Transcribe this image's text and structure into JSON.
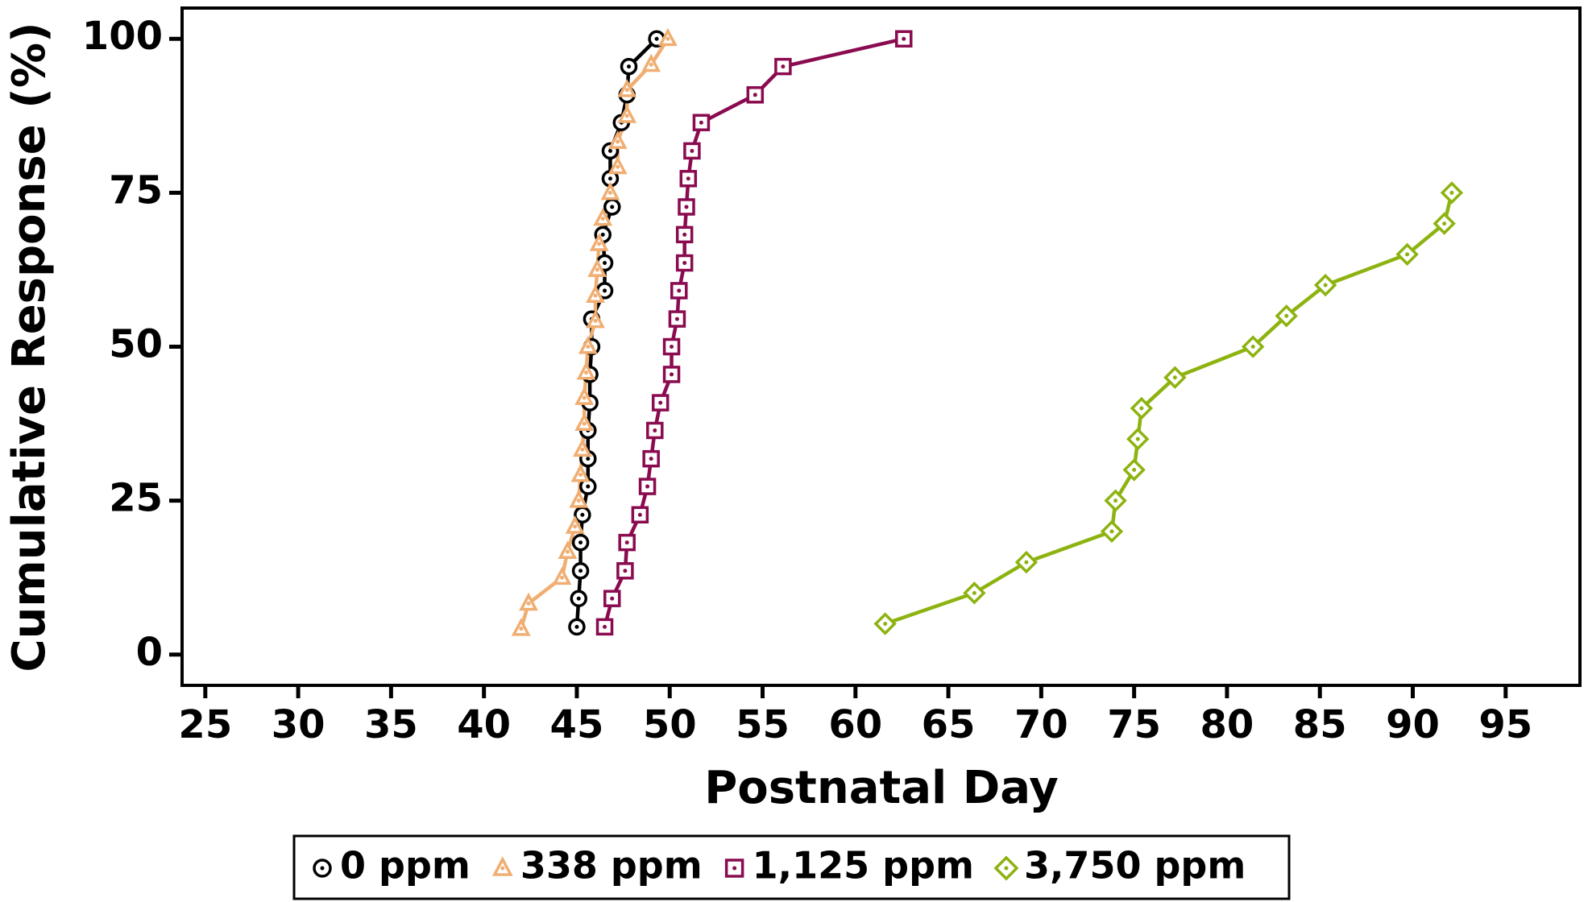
{
  "chart_data": {
    "type": "line",
    "x_label": "Postnatal Day",
    "y_label": "Cumulative Response (%)",
    "xlim": [
      23.75,
      99
    ],
    "ylim": [
      -5,
      105
    ],
    "xticks": [
      25,
      30,
      35,
      40,
      45,
      50,
      55,
      60,
      65,
      70,
      75,
      80,
      85,
      90,
      95
    ],
    "yticks": [
      0,
      25,
      50,
      75,
      100
    ],
    "series": [
      {
        "name": "0 ppm",
        "color": "#000000",
        "marker": "circle",
        "x": [
          45.0,
          45.1,
          45.2,
          45.2,
          45.3,
          45.6,
          45.6,
          45.6,
          45.7,
          45.7,
          45.8,
          45.8,
          46.5,
          46.5,
          46.4,
          46.9,
          46.8,
          46.8,
          47.4,
          47.7,
          47.8,
          49.3
        ],
        "values": [
          4.5,
          9.1,
          13.6,
          18.2,
          22.7,
          27.3,
          31.8,
          36.4,
          40.9,
          45.5,
          50,
          54.5,
          59.1,
          63.6,
          68.2,
          72.7,
          77.3,
          81.8,
          86.4,
          90.9,
          95.5,
          100
        ]
      },
      {
        "name": "338 ppm",
        "color": "#f0ae72",
        "marker": "triangle",
        "x": [
          42.0,
          42.4,
          44.2,
          44.5,
          44.9,
          45.1,
          45.2,
          45.3,
          45.4,
          45.4,
          45.5,
          45.6,
          46.0,
          46.0,
          46.1,
          46.2,
          46.4,
          46.8,
          47.2,
          47.2,
          47.7,
          47.7,
          49.0,
          49.9
        ],
        "values": [
          4.2,
          8.3,
          12.5,
          16.7,
          20.8,
          25,
          29.2,
          33.3,
          37.5,
          41.7,
          45.8,
          50,
          54.2,
          58.3,
          62.5,
          66.7,
          70.8,
          75,
          79.2,
          83.3,
          87.5,
          91.7,
          95.8,
          100
        ]
      },
      {
        "name": "1,125 ppm",
        "color": "#8a0b4f",
        "marker": "square",
        "x": [
          46.5,
          46.9,
          47.6,
          47.7,
          48.4,
          48.8,
          49.0,
          49.2,
          49.5,
          50.1,
          50.1,
          50.4,
          50.5,
          50.8,
          50.8,
          50.9,
          51.0,
          51.2,
          51.7,
          54.6,
          56.1,
          62.6
        ],
        "values": [
          4.5,
          9.1,
          13.6,
          18.2,
          22.7,
          27.3,
          31.8,
          36.4,
          40.9,
          45.5,
          50,
          54.5,
          59.1,
          63.6,
          68.2,
          72.7,
          77.3,
          81.8,
          86.4,
          90.9,
          95.5,
          100
        ]
      },
      {
        "name": "3,750 ppm",
        "color": "#8db310",
        "marker": "diamond",
        "x": [
          61.6,
          66.4,
          69.2,
          73.8,
          74.0,
          75.0,
          75.2,
          75.4,
          77.2,
          81.4,
          83.2,
          85.3,
          89.7,
          91.7,
          92.1
        ],
        "values": [
          5,
          10,
          15,
          20,
          25,
          30,
          35,
          40,
          45,
          50,
          55,
          60,
          65,
          70,
          75
        ]
      }
    ]
  }
}
